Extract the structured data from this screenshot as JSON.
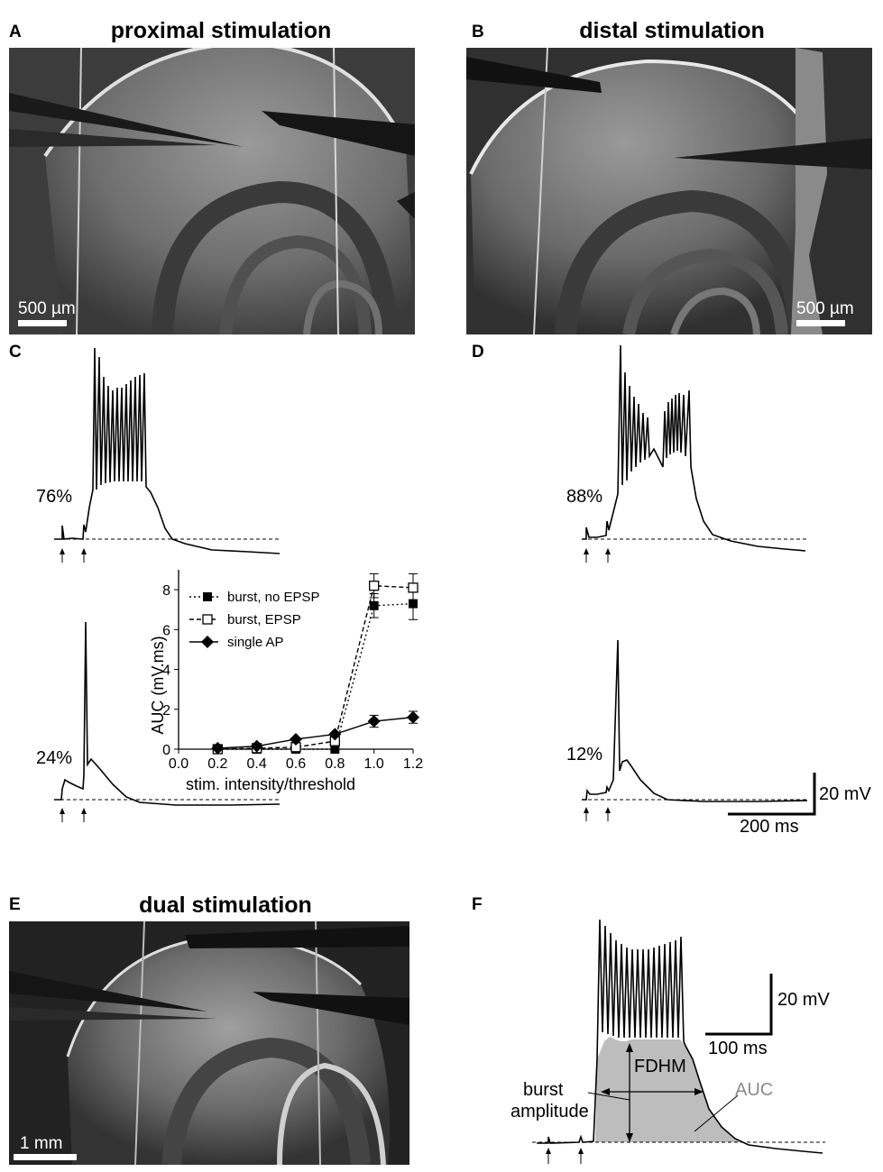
{
  "panels": {
    "A": {
      "label": "A",
      "title": "proximal stimulation",
      "scale_label": "500 µm"
    },
    "B": {
      "label": "B",
      "title": "distal stimulation",
      "scale_label": "500 µm"
    },
    "C": {
      "label": "C",
      "pct_top": "76%",
      "pct_bottom": "24%"
    },
    "D": {
      "label": "D",
      "pct_top": "88%",
      "pct_bottom": "12%",
      "scale_v": "20 mV",
      "scale_h": "200 ms"
    },
    "E": {
      "label": "E",
      "title": "dual stimulation",
      "scale_label": "1 mm"
    },
    "F": {
      "label": "F",
      "scale_v": "20 mV",
      "scale_h": "100 ms",
      "fdhm": "FDHM",
      "auc": "AUC",
      "burst_line1": "burst",
      "burst_line2": "amplitude"
    }
  },
  "chart_data": {
    "type": "line",
    "xlabel": "stim. intensity/threshold",
    "ylabel": "AUC (mV.ms)",
    "xlim": [
      0.0,
      1.2
    ],
    "ylim": [
      0,
      9
    ],
    "xticks": [
      "0.0",
      "0.2",
      "0.4",
      "0.6",
      "0.8",
      "1.0",
      "1.2"
    ],
    "yticks": [
      "0",
      "2",
      "4",
      "6",
      "8"
    ],
    "x": [
      0.2,
      0.4,
      0.6,
      0.8,
      1.0,
      1.2
    ],
    "legend_position": "top-left",
    "series": [
      {
        "name": "burst, no EPSP",
        "marker": "filled-square",
        "line": "dotted",
        "values": [
          0.0,
          0.0,
          0.0,
          0.0,
          7.2,
          7.3
        ],
        "errors": [
          0.1,
          0.1,
          0.1,
          0.1,
          0.6,
          0.8
        ]
      },
      {
        "name": "burst, EPSP",
        "marker": "open-square",
        "line": "dashed",
        "values": [
          0.0,
          0.05,
          0.1,
          0.4,
          8.2,
          8.1
        ],
        "errors": [
          0.1,
          0.1,
          0.1,
          0.1,
          0.6,
          0.7
        ]
      },
      {
        "name": "single AP",
        "marker": "filled-diamond",
        "line": "solid",
        "values": [
          0.05,
          0.15,
          0.5,
          0.75,
          1.4,
          1.6
        ],
        "errors": [
          0.1,
          0.1,
          0.1,
          0.1,
          0.3,
          0.3
        ]
      }
    ]
  }
}
